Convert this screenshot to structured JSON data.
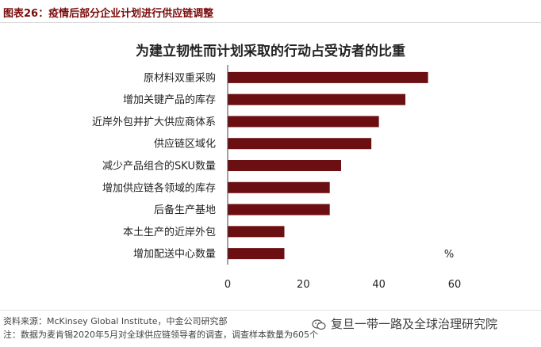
{
  "figure_label": "图表26：疫情后部分企业计划进行供应链调整",
  "chart_data": {
    "type": "bar",
    "orientation": "horizontal",
    "title": "为建立韧性而计划采取的行动占受访者的比重",
    "categories": [
      "原材料双重采购",
      "增加关键产品的库存",
      "近岸外包并扩大供应商体系",
      "供应链区域化",
      "减少产品组合的SKU数量",
      "增加供应链各领域的库存",
      "后备生产基地",
      "本土生产的近岸外包",
      "增加配送中心数量"
    ],
    "values": [
      53,
      47,
      40,
      38,
      30,
      27,
      27,
      15,
      15
    ],
    "xlim": [
      0,
      60
    ],
    "xticks": [
      "0",
      "20",
      "40",
      "60"
    ],
    "unit_label": "%",
    "bar_color": "#6b0f12",
    "grid": false
  },
  "footer": {
    "source": "资料来源：McKinsey Global Institute，中金公司研究部",
    "note": "注：数据为麦肯锡2020年5月对全球供应链领导者的调查，调查样本数量为605个"
  },
  "watermark": {
    "icon": "wechat-icon",
    "text": "复旦一带一路及全球治理研究院"
  }
}
